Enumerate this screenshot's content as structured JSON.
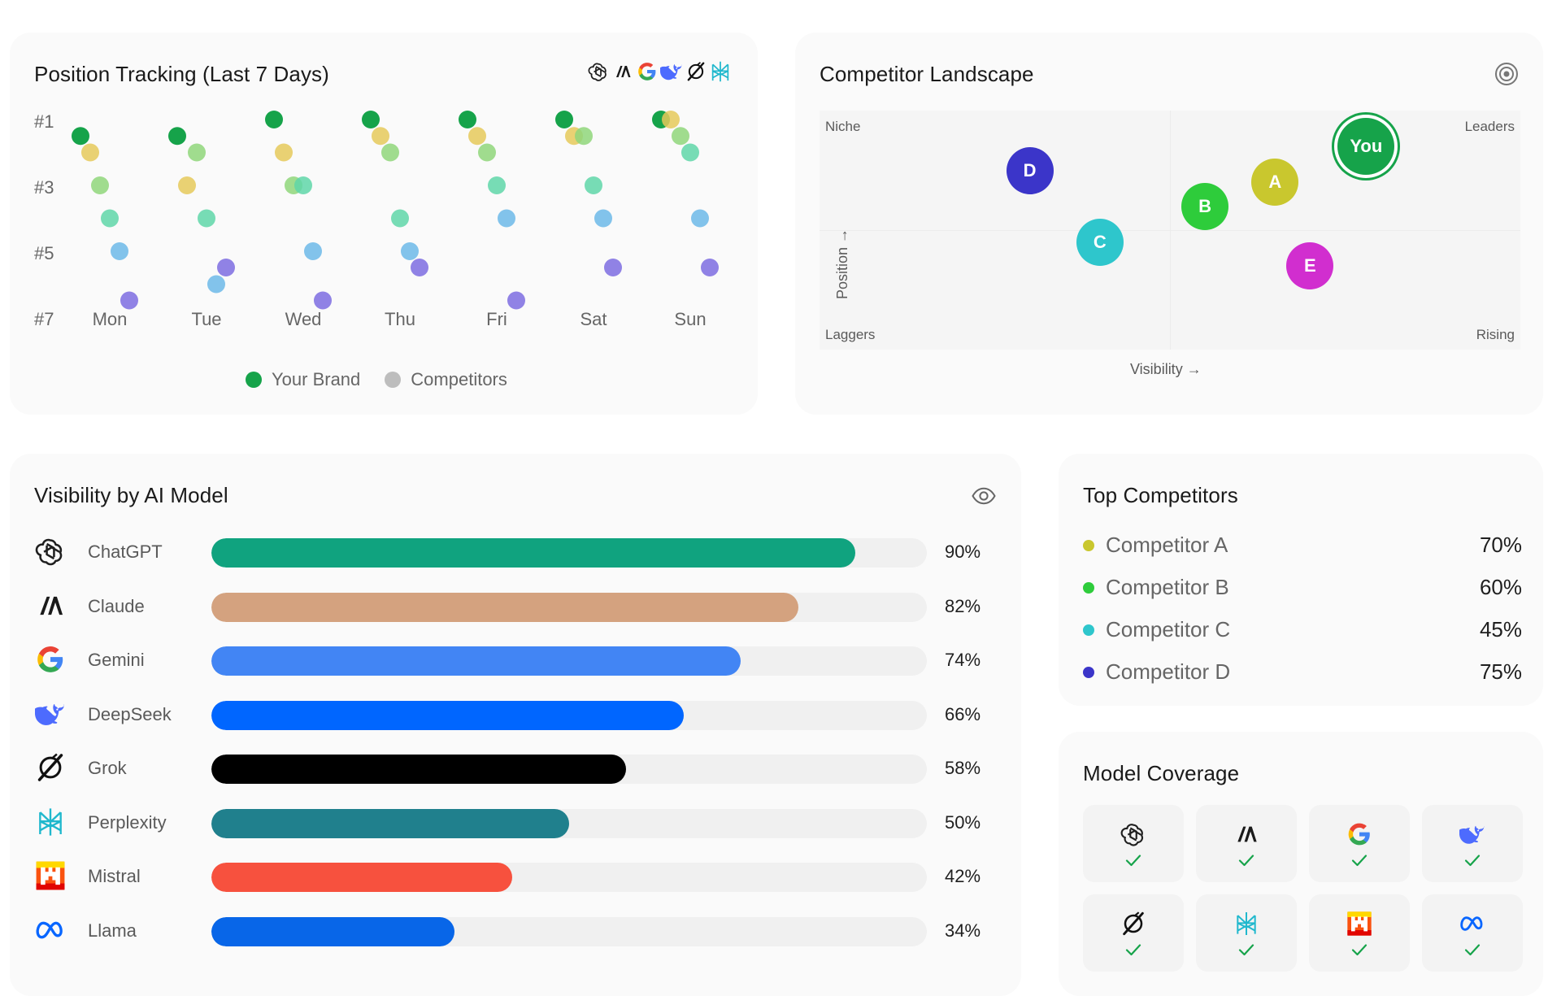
{
  "position_tracking": {
    "title": "Position Tracking (Last 7 Days)",
    "header_icons": [
      "chatgpt-icon",
      "claude-icon",
      "gemini-icon",
      "deepseek-icon",
      "grok-icon",
      "perplexity-icon"
    ],
    "y_ticks": [
      "#1",
      "#3",
      "#5",
      "#7"
    ],
    "legend": {
      "brand": "Your Brand",
      "competitors": "Competitors"
    },
    "chart_data": {
      "type": "scatter",
      "x_categories": [
        "Mon",
        "Tue",
        "Wed",
        "Thu",
        "Fri",
        "Sat",
        "Sun"
      ],
      "y_axis": "rank (1 = top, 7 = bottom)",
      "ylim": [
        1,
        7
      ],
      "series": [
        {
          "name": "Your Brand",
          "color": "#16a34a",
          "positions": [
            1.5,
            1.5,
            1,
            1,
            1,
            1,
            1
          ]
        },
        {
          "name": "Competitors",
          "color": "#e5c95a",
          "positions": [
            2,
            3,
            2,
            1.5,
            1.5,
            1.5,
            1
          ]
        },
        {
          "color": "#8fd67a",
          "positions": [
            3,
            2,
            3,
            2,
            2,
            1.5,
            1.5
          ]
        },
        {
          "color": "#5fd6a8",
          "positions": [
            4,
            4,
            3,
            4,
            3,
            3,
            2
          ]
        },
        {
          "color": "#6cb8e8",
          "positions": [
            5,
            6,
            5,
            5,
            4,
            4,
            4
          ]
        },
        {
          "color": "#7c6ce0",
          "positions": [
            6,
            5,
            6,
            5,
            6,
            5,
            5
          ]
        }
      ]
    }
  },
  "competitor_landscape": {
    "title": "Competitor Landscape",
    "quadrants": {
      "top_left": "Niche",
      "top_right": "Leaders",
      "bottom_left": "Laggers",
      "bottom_right": "Rising"
    },
    "x_axis": "Visibility →",
    "y_axis": "Position →",
    "chart_data": {
      "type": "scatter",
      "xlabel": "Visibility",
      "ylabel": "Position",
      "points": [
        {
          "label": "D",
          "visibility": 0.3,
          "position": 0.75,
          "color": "#3b35c9"
        },
        {
          "label": "C",
          "visibility": 0.4,
          "position": 0.45,
          "color": "#2ec6cc"
        },
        {
          "label": "B",
          "visibility": 0.55,
          "position": 0.6,
          "color": "#2ecc3b"
        },
        {
          "label": "A",
          "visibility": 0.65,
          "position": 0.7,
          "color": "#c9c72e"
        },
        {
          "label": "E",
          "visibility": 0.7,
          "position": 0.35,
          "color": "#d12ecf"
        },
        {
          "label": "You",
          "visibility": 0.78,
          "position": 0.85,
          "color": "#16a34a"
        }
      ]
    }
  },
  "visibility_by_model": {
    "title": "Visibility by AI Model",
    "chart_data": {
      "type": "bar",
      "categories": [
        "ChatGPT",
        "Claude",
        "Gemini",
        "DeepSeek",
        "Grok",
        "Perplexity",
        "Mistral",
        "Llama"
      ],
      "values": [
        90,
        82,
        74,
        66,
        58,
        50,
        42,
        34
      ],
      "unit": "%",
      "colors": [
        "#10a37f",
        "#d4a27f",
        "#4285f4",
        "#0066ff",
        "#000000",
        "#20808d",
        "#f7513e",
        "#0866e8"
      ],
      "ylim": [
        0,
        100
      ]
    },
    "rows": [
      {
        "name": "ChatGPT",
        "pct": "90%",
        "icon": "chatgpt-icon"
      },
      {
        "name": "Claude",
        "pct": "82%",
        "icon": "claude-icon"
      },
      {
        "name": "Gemini",
        "pct": "74%",
        "icon": "gemini-icon"
      },
      {
        "name": "DeepSeek",
        "pct": "66%",
        "icon": "deepseek-icon"
      },
      {
        "name": "Grok",
        "pct": "58%",
        "icon": "grok-icon"
      },
      {
        "name": "Perplexity",
        "pct": "50%",
        "icon": "perplexity-icon"
      },
      {
        "name": "Mistral",
        "pct": "42%",
        "icon": "mistral-icon"
      },
      {
        "name": "Llama",
        "pct": "34%",
        "icon": "llama-icon"
      }
    ]
  },
  "top_competitors": {
    "title": "Top Competitors",
    "items": [
      {
        "name": "Competitor A",
        "value": "70%",
        "color": "#c9c72e"
      },
      {
        "name": "Competitor B",
        "value": "60%",
        "color": "#2ecc3b"
      },
      {
        "name": "Competitor C",
        "value": "45%",
        "color": "#2ec6cc"
      },
      {
        "name": "Competitor D",
        "value": "75%",
        "color": "#3b35c9"
      }
    ]
  },
  "model_coverage": {
    "title": "Model Coverage",
    "models": [
      {
        "icon": "chatgpt-icon",
        "covered": true
      },
      {
        "icon": "claude-icon",
        "covered": true
      },
      {
        "icon": "gemini-icon",
        "covered": true
      },
      {
        "icon": "deepseek-icon",
        "covered": true
      },
      {
        "icon": "grok-icon",
        "covered": true
      },
      {
        "icon": "perplexity-icon",
        "covered": true
      },
      {
        "icon": "mistral-icon",
        "covered": true
      },
      {
        "icon": "llama-icon",
        "covered": true
      }
    ]
  }
}
